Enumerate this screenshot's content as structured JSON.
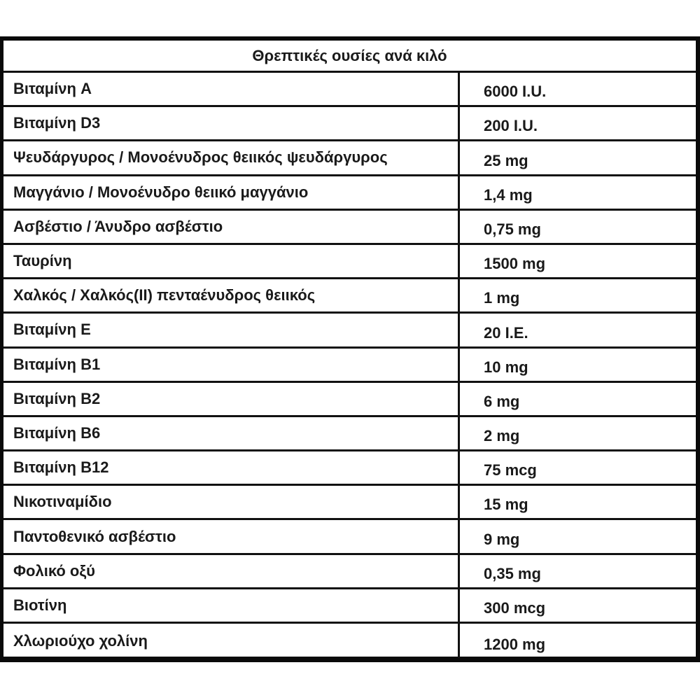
{
  "table": {
    "title": "Θρεπτικές ουσίες ανά κιλό",
    "rows": [
      {
        "name": "Βιταμίνη A",
        "value": "6000 I.U."
      },
      {
        "name": "Βιταμίνη D3",
        "value": "200 I.U."
      },
      {
        "name": "Ψευδάργυρος / Μονοένυδρος θειικός ψευδάργυρος",
        "value": "25 mg"
      },
      {
        "name": "Μαγγάνιο / Μονοένυδρο θειικό μαγγάνιο",
        "value": "1,4 mg"
      },
      {
        "name": "Ασβέστιο / Άνυδρο ασβέστιο",
        "value": "0,75 mg"
      },
      {
        "name": "Ταυρίνη",
        "value": "1500 mg"
      },
      {
        "name": "Χαλκός / Χαλκός(ΙΙ) πενταένυδρος θειικός",
        "value": "1 mg"
      },
      {
        "name": "Βιταμίνη E",
        "value": "20 I.E."
      },
      {
        "name": "Βιταμίνη B1",
        "value": "10 mg"
      },
      {
        "name": "Βιταμίνη B2",
        "value": "6 mg"
      },
      {
        "name": "Βιταμίνη B6",
        "value": "2 mg"
      },
      {
        "name": "Βιταμίνη B12",
        "value": "75 mcg"
      },
      {
        "name": "Νικοτιναμίδιο",
        "value": "15 mg"
      },
      {
        "name": "Παντοθενικό ασβέστιο",
        "value": "9 mg"
      },
      {
        "name": "Φολικό οξύ",
        "value": "0,35 mg"
      },
      {
        "name": "Βιοτίνη",
        "value": "300 mcg"
      },
      {
        "name": "Χλωριούχο χολίνη",
        "value": "1200 mg"
      }
    ]
  }
}
